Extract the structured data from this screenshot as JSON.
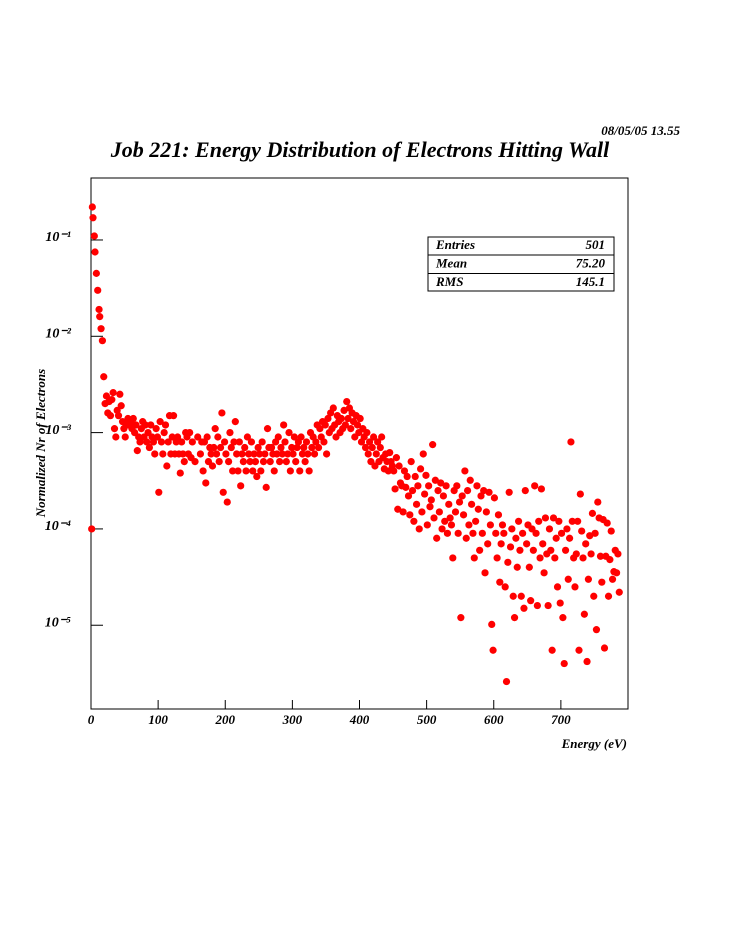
{
  "chart_data": {
    "type": "scatter",
    "title": "Job 221: Energy Distribution of Electrons Hitting Wall",
    "timestamp": "08/05/05   13.55",
    "x_label": "Energy (eV)",
    "y_label": "Normalized Nr of Electrons",
    "log_y": true,
    "xlim": [
      0,
      800
    ],
    "ylim": [
      1.35e-06,
      0.44
    ],
    "xticks": [
      0,
      100,
      200,
      300,
      400,
      500,
      600,
      700
    ],
    "yticks": [
      {
        "value": 0.1,
        "label": "10⁻¹"
      },
      {
        "value": 0.01,
        "label": "10⁻²"
      },
      {
        "value": 0.001,
        "label": "10⁻³"
      },
      {
        "value": 0.0001,
        "label": "10⁻⁴"
      },
      {
        "value": 1e-05,
        "label": "10⁻⁵"
      }
    ],
    "stats": [
      {
        "name": "Entries",
        "value": "501"
      },
      {
        "name": "Mean",
        "value": "75.20"
      },
      {
        "name": "RMS",
        "value": "145.1"
      }
    ],
    "color": "#ff0000",
    "x": [
      1,
      2,
      3,
      5,
      6,
      8,
      10,
      12,
      13,
      15,
      17,
      19,
      21,
      23,
      25,
      27,
      29,
      31,
      33,
      35,
      37,
      39,
      41,
      43,
      45,
      47,
      49,
      51,
      53,
      55,
      57,
      59,
      61,
      63,
      65,
      67,
      69,
      71,
      73,
      75,
      77,
      79,
      81,
      83,
      85,
      87,
      89,
      91,
      93,
      95,
      97,
      99,
      101,
      103,
      105,
      107,
      109,
      111,
      113,
      115,
      117,
      119,
      121,
      123,
      125,
      127,
      129,
      131,
      133,
      135,
      137,
      139,
      141,
      143,
      145,
      147,
      149,
      151,
      155,
      159,
      163,
      165,
      167,
      169,
      171,
      173,
      175,
      177,
      179,
      181,
      183,
      185,
      187,
      189,
      191,
      193,
      195,
      197,
      199,
      201,
      203,
      205,
      207,
      209,
      211,
      213,
      215,
      217,
      219,
      221,
      223,
      225,
      227,
      229,
      231,
      233,
      235,
      237,
      239,
      241,
      243,
      245,
      247,
      249,
      251,
      253,
      255,
      257,
      259,
      261,
      263,
      265,
      267,
      269,
      271,
      273,
      275,
      277,
      279,
      281,
      283,
      285,
      287,
      289,
      291,
      293,
      295,
      297,
      299,
      301,
      303,
      305,
      307,
      309,
      311,
      313,
      315,
      317,
      319,
      321,
      323,
      325,
      327,
      329,
      331,
      333,
      335,
      337,
      339,
      341,
      343,
      345,
      347,
      349,
      351,
      353,
      355,
      357,
      359,
      361,
      363,
      365,
      367,
      369,
      371,
      373,
      375,
      377,
      379,
      381,
      383,
      385,
      387,
      389,
      391,
      393,
      395,
      397,
      399,
      401,
      403,
      405,
      407,
      409,
      411,
      413,
      415,
      417,
      419,
      421,
      423,
      425,
      427,
      429,
      431,
      433,
      435,
      437,
      439,
      441,
      443,
      445,
      447,
      449,
      451,
      453,
      455,
      457,
      459,
      461,
      463,
      465,
      467,
      469,
      471,
      473,
      475,
      477,
      479,
      481,
      483,
      485,
      487,
      489,
      491,
      493,
      495,
      497,
      499,
      501,
      503,
      505,
      507,
      509,
      511,
      513,
      515,
      517,
      519,
      521,
      523,
      525,
      527,
      529,
      531,
      533,
      535,
      537,
      539,
      541,
      543,
      545,
      547,
      549,
      551,
      553,
      555,
      557,
      559,
      561,
      563,
      565,
      567,
      569,
      571,
      573,
      575,
      577,
      579,
      581,
      583,
      585,
      587,
      589,
      591,
      593,
      595,
      597,
      599,
      601,
      603,
      605,
      607,
      609,
      611,
      613,
      615,
      617,
      619,
      621,
      623,
      625,
      627,
      629,
      631,
      633,
      635,
      637,
      639,
      641,
      643,
      645,
      647,
      649,
      651,
      653,
      655,
      657,
      659,
      661,
      663,
      665,
      667,
      669,
      671,
      673,
      675,
      677,
      679,
      681,
      683,
      685,
      687,
      689,
      691,
      693,
      695,
      697,
      699,
      701,
      703,
      705,
      707,
      709,
      711,
      713,
      715,
      717,
      719,
      721,
      723,
      725,
      727,
      729,
      731,
      733,
      735,
      737,
      739,
      741,
      743,
      745,
      747,
      749,
      751,
      753,
      755,
      757,
      759,
      761,
      763,
      765,
      767,
      769,
      771,
      773,
      775,
      777,
      779,
      781,
      783,
      785,
      787
    ],
    "values": [
      0.0001,
      0.22,
      0.17,
      0.11,
      0.075,
      0.045,
      0.03,
      0.019,
      0.016,
      0.012,
      0.009,
      0.0038,
      0.002,
      0.0024,
      0.0016,
      0.0021,
      0.0015,
      0.0022,
      0.0026,
      0.0011,
      0.0009,
      0.0017,
      0.0015,
      0.0025,
      0.0019,
      0.0013,
      0.0011,
      0.0009,
      0.0012,
      0.0014,
      0.0012,
      0.0013,
      0.0011,
      0.0014,
      0.001,
      0.0012,
      0.00065,
      0.0009,
      0.0008,
      0.0011,
      0.0013,
      0.0009,
      0.0012,
      0.0008,
      0.001,
      0.0007,
      0.0012,
      0.0009,
      0.0008,
      0.0006,
      0.0011,
      0.0009,
      0.00024,
      0.0013,
      0.0008,
      0.0006,
      0.001,
      0.0012,
      0.00045,
      0.0008,
      0.0015,
      0.0006,
      0.0009,
      0.0015,
      0.0006,
      0.0008,
      0.0009,
      0.0006,
      0.00038,
      0.0008,
      0.0006,
      0.0005,
      0.001,
      0.0009,
      0.0006,
      0.001,
      0.00055,
      0.0008,
      0.0005,
      0.0009,
      0.0006,
      0.0008,
      0.0004,
      0.0008,
      0.0003,
      0.0009,
      0.0005,
      0.0007,
      0.0006,
      0.00045,
      0.0007,
      0.0011,
      0.0006,
      0.0009,
      0.0005,
      0.0007,
      0.0016,
      0.00024,
      0.0008,
      0.0006,
      0.00019,
      0.0005,
      0.001,
      0.0007,
      0.0004,
      0.0008,
      0.0013,
      0.0006,
      0.0004,
      0.0008,
      0.00028,
      0.0006,
      0.0005,
      0.0007,
      0.0004,
      0.0009,
      0.0006,
      0.0005,
      0.0008,
      0.0004,
      0.0006,
      0.0005,
      0.00035,
      0.0007,
      0.0006,
      0.0004,
      0.0008,
      0.0005,
      0.0006,
      0.00027,
      0.0011,
      0.0007,
      0.0005,
      0.0007,
      0.0006,
      0.0004,
      0.0008,
      0.0006,
      0.0009,
      0.0005,
      0.0007,
      0.0006,
      0.0012,
      0.0008,
      0.0005,
      0.0006,
      0.001,
      0.0004,
      0.0007,
      0.0006,
      0.0009,
      0.0005,
      0.0007,
      0.0008,
      0.0004,
      0.0009,
      0.0006,
      0.0007,
      0.0005,
      0.0008,
      0.0006,
      0.0004,
      0.001,
      0.0007,
      0.0009,
      0.0006,
      0.0008,
      0.0012,
      0.0007,
      0.0011,
      0.0009,
      0.0013,
      0.0008,
      0.0012,
      0.0006,
      0.0014,
      0.001,
      0.0016,
      0.0011,
      0.0018,
      0.0012,
      0.0009,
      0.0015,
      0.0013,
      0.001,
      0.0014,
      0.0011,
      0.0017,
      0.0012,
      0.0021,
      0.0014,
      0.0018,
      0.0011,
      0.0016,
      0.0013,
      0.0009,
      0.0015,
      0.0012,
      0.001,
      0.0014,
      0.0008,
      0.0011,
      0.0009,
      0.0007,
      0.001,
      0.0006,
      0.0008,
      0.0005,
      0.0007,
      0.0009,
      0.00045,
      0.0006,
      0.0008,
      0.0005,
      0.0007,
      0.0009,
      0.00055,
      0.00042,
      0.0006,
      0.0005,
      0.0004,
      0.00062,
      0.0005,
      0.00045,
      0.0004,
      0.00026,
      0.00055,
      0.00016,
      0.00045,
      0.0003,
      0.00028,
      0.00015,
      0.0004,
      0.00027,
      0.00035,
      0.00022,
      0.00014,
      0.0005,
      0.00025,
      0.00012,
      0.00035,
      0.00018,
      0.00028,
      0.0001,
      0.00042,
      0.00015,
      0.0006,
      0.00023,
      0.00036,
      0.00011,
      0.00028,
      0.00017,
      0.0002,
      0.00075,
      0.00013,
      0.00032,
      8e-05,
      0.00025,
      0.00015,
      0.0003,
      0.0001,
      0.00022,
      0.00012,
      0.00028,
      9e-05,
      0.00018,
      0.00013,
      0.00011,
      5e-05,
      0.00025,
      0.00015,
      0.00028,
      9e-05,
      0.00019,
      1.2e-05,
      0.00022,
      0.00014,
      0.0004,
      8e-05,
      0.00025,
      0.00011,
      0.00032,
      0.00018,
      9e-05,
      5e-05,
      0.00012,
      0.00028,
      0.00016,
      6e-05,
      0.00022,
      9e-05,
      0.00025,
      3.5e-05,
      0.00015,
      7e-05,
      0.00024,
      0.00011,
      1.02e-05,
      5.5e-06,
      0.00021,
      9e-05,
      5e-05,
      0.00014,
      2.8e-05,
      7e-05,
      0.00011,
      9e-05,
      2.5e-05,
      2.6e-06,
      4.5e-05,
      0.00024,
      6.5e-05,
      0.0001,
      2e-05,
      1.2e-05,
      8e-05,
      4e-05,
      0.00012,
      6e-05,
      2e-05,
      9e-05,
      1.5e-05,
      0.00025,
      7e-05,
      0.00011,
      4e-05,
      1.8e-05,
      0.0001,
      6e-05,
      0.00028,
      9e-05,
      1.6e-05,
      0.00012,
      5e-05,
      0.00026,
      7e-05,
      3.5e-05,
      0.00013,
      5.5e-05,
      1.6e-05,
      0.0001,
      6e-05,
      5.5e-06,
      0.00013,
      5e-05,
      8e-05,
      2.5e-05,
      0.00012,
      1.7e-05,
      9e-05,
      1.2e-05,
      4e-06,
      6e-05,
      0.0001,
      3e-05,
      8e-05,
      0.0008,
      0.00012,
      5e-05,
      2.5e-05,
      5.5e-05,
      0.00012,
      5.5e-06,
      0.00023,
      9.5e-05,
      5e-05,
      1.3e-05,
      7e-05,
      4.2e-06,
      3e-05,
      8.5e-05,
      5.5e-05,
      0.000145,
      2e-05,
      9e-05,
      9e-06,
      0.00019,
      0.00013,
      5.2e-05,
      2.8e-05,
      0.000125,
      5.8e-06,
      5.2e-05,
      0.000115,
      2e-05,
      4.8e-05,
      9.5e-05,
      3e-05,
      3.6e-05,
      6e-05,
      3.5e-05,
      5.5e-05,
      2.2e-05
    ]
  }
}
